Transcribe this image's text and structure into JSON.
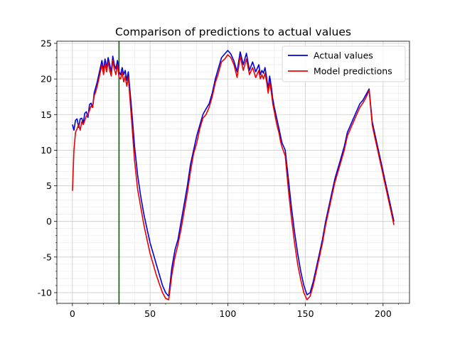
{
  "chart_data": {
    "type": "line",
    "title": "Comparison of predictions to actual values",
    "xlabel": "",
    "ylabel": "",
    "xlim": [
      -10,
      217
    ],
    "ylim": [
      -11.5,
      25.3
    ],
    "xticks": [
      0,
      50,
      100,
      150,
      200
    ],
    "yticks": [
      -10,
      -5,
      0,
      5,
      10,
      15,
      20,
      25
    ],
    "grid": true,
    "minor_grid": true,
    "legend": {
      "position": "top-right"
    },
    "vline": {
      "x": 30,
      "color": "#006400"
    },
    "series": [
      {
        "name": "Actual values",
        "color": "#0000dd",
        "x": [
          0,
          1,
          2,
          3,
          4,
          5,
          6,
          7,
          8,
          9,
          10,
          11,
          12,
          13,
          14,
          15,
          16,
          17,
          18,
          19,
          20,
          21,
          22,
          23,
          24,
          25,
          26,
          27,
          28,
          29,
          30,
          31,
          32,
          33,
          34,
          35,
          36,
          38,
          40,
          42,
          44,
          46,
          48,
          50,
          52,
          54,
          56,
          58,
          60,
          62,
          64,
          66,
          68,
          70,
          72,
          74,
          76,
          78,
          80,
          82,
          84,
          86,
          88,
          90,
          92,
          94,
          96,
          98,
          100,
          102,
          104,
          106,
          108,
          110,
          112,
          114,
          116,
          118,
          120,
          121,
          122,
          123,
          124,
          125,
          126,
          127,
          128,
          129,
          130,
          131,
          132,
          133,
          134,
          135,
          137,
          139,
          141,
          143,
          145,
          147,
          149,
          151,
          153,
          155,
          157,
          159,
          161,
          163,
          165,
          167,
          169,
          171,
          173,
          175,
          177,
          179,
          181,
          183,
          185,
          187,
          189,
          191,
          193,
          195,
          197,
          199,
          201,
          203,
          205,
          207
        ],
        "values": [
          13.6,
          12.8,
          14.2,
          14.4,
          13.2,
          14.4,
          14.5,
          13.8,
          15.2,
          15.4,
          14.6,
          16.4,
          16.6,
          16.0,
          18.0,
          18.8,
          19.6,
          20.6,
          21.6,
          22.6,
          21.2,
          22.8,
          21.6,
          23.0,
          22.0,
          21.0,
          23.2,
          22.0,
          21.4,
          22.6,
          21.0,
          20.6,
          21.6,
          20.6,
          21.2,
          19.8,
          21.0,
          16.0,
          10.5,
          6.5,
          3.5,
          1.0,
          -1.0,
          -3.0,
          -4.5,
          -6.0,
          -7.5,
          -9.0,
          -10.0,
          -10.5,
          -6.5,
          -4.0,
          -2.5,
          0.0,
          2.5,
          5.0,
          8.0,
          10.0,
          12.0,
          13.5,
          15.0,
          15.8,
          16.5,
          18.0,
          20.0,
          21.5,
          23.0,
          23.5,
          24.0,
          23.5,
          22.5,
          21.0,
          23.8,
          22.0,
          23.6,
          21.2,
          22.4,
          21.0,
          22.0,
          20.6,
          21.2,
          20.8,
          21.6,
          20.2,
          18.6,
          20.4,
          19.0,
          17.2,
          16.0,
          15.0,
          14.0,
          13.0,
          12.0,
          11.0,
          10.0,
          6.0,
          2.0,
          -1.5,
          -4.5,
          -7.0,
          -9.0,
          -10.3,
          -10.0,
          -8.5,
          -6.5,
          -4.5,
          -2.5,
          0.0,
          2.0,
          4.0,
          6.0,
          7.5,
          9.0,
          10.5,
          12.5,
          13.5,
          14.5,
          15.5,
          16.5,
          17.0,
          17.8,
          18.6,
          14.0,
          12.0,
          10.0,
          8.0,
          6.0,
          4.0,
          2.0,
          0.0
        ]
      },
      {
        "name": "Model predictions",
        "color": "#ee0000",
        "x": [
          0,
          1,
          2,
          3,
          4,
          5,
          6,
          7,
          8,
          9,
          10,
          11,
          12,
          13,
          14,
          15,
          16,
          17,
          18,
          19,
          20,
          21,
          22,
          23,
          24,
          25,
          26,
          27,
          28,
          29,
          30,
          31,
          32,
          33,
          34,
          35,
          36,
          38,
          40,
          42,
          44,
          46,
          48,
          50,
          52,
          54,
          56,
          58,
          60,
          62,
          64,
          66,
          68,
          70,
          72,
          74,
          76,
          78,
          80,
          82,
          84,
          86,
          88,
          90,
          92,
          94,
          96,
          98,
          100,
          102,
          104,
          106,
          108,
          110,
          112,
          114,
          116,
          118,
          120,
          121,
          122,
          123,
          124,
          125,
          126,
          127,
          128,
          129,
          130,
          131,
          132,
          133,
          134,
          135,
          137,
          139,
          141,
          143,
          145,
          147,
          149,
          151,
          153,
          155,
          157,
          159,
          161,
          163,
          165,
          167,
          169,
          171,
          173,
          175,
          177,
          179,
          181,
          183,
          185,
          187,
          189,
          191,
          193,
          195,
          197,
          199,
          201,
          203,
          205,
          207
        ],
        "values": [
          4.3,
          10.0,
          12.5,
          13.0,
          13.6,
          12.8,
          14.0,
          13.6,
          14.2,
          14.8,
          15.0,
          15.6,
          16.2,
          16.0,
          17.6,
          18.2,
          19.0,
          20.0,
          21.0,
          22.0,
          20.6,
          22.2,
          21.0,
          22.4,
          21.2,
          20.4,
          22.6,
          21.4,
          20.6,
          22.0,
          20.2,
          20.0,
          21.0,
          19.6,
          20.4,
          19.0,
          20.2,
          14.5,
          8.5,
          4.5,
          2.0,
          -0.5,
          -2.5,
          -4.5,
          -6.0,
          -7.5,
          -8.8,
          -10.0,
          -10.8,
          -11.0,
          -7.5,
          -5.0,
          -3.2,
          -1.0,
          1.5,
          4.0,
          7.0,
          9.5,
          11.0,
          13.0,
          14.5,
          15.0,
          16.0,
          17.5,
          19.5,
          20.8,
          22.4,
          22.8,
          23.4,
          23.0,
          22.0,
          20.2,
          23.2,
          21.2,
          22.8,
          20.6,
          21.6,
          20.2,
          21.2,
          20.0,
          20.6,
          20.0,
          20.8,
          19.6,
          18.0,
          19.6,
          18.2,
          16.5,
          15.4,
          14.2,
          13.2,
          12.4,
          11.2,
          10.4,
          9.2,
          4.5,
          0.5,
          -3.0,
          -6.0,
          -8.2,
          -10.0,
          -11.0,
          -10.5,
          -9.0,
          -7.0,
          -5.0,
          -3.0,
          -0.5,
          1.5,
          3.5,
          5.5,
          7.0,
          8.5,
          10.0,
          12.0,
          13.0,
          14.0,
          15.0,
          16.0,
          16.6,
          17.4,
          18.4,
          13.5,
          11.5,
          9.5,
          7.5,
          5.5,
          3.5,
          1.5,
          -0.5
        ]
      }
    ]
  }
}
